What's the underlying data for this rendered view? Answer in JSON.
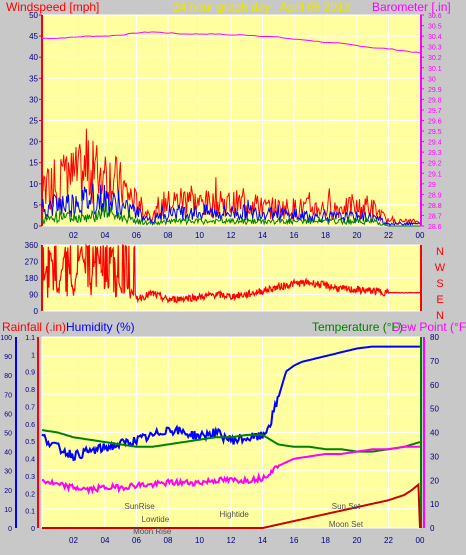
{
  "title": "24 hour graph day : April 05 2013",
  "colors": {
    "frame": "#c8c8c8",
    "plot_bg": "#ffffa0",
    "grid": "#ffffff",
    "red": "#ff0000",
    "blue": "#0000ff",
    "green": "#008000",
    "magenta": "#ff00ff",
    "title": "#e8e800",
    "axis_text_dark": "#000080",
    "dark_red": "#c80000",
    "gray": "#505050"
  },
  "x_ticks": [
    "02",
    "04",
    "06",
    "08",
    "10",
    "12",
    "14",
    "16",
    "18",
    "20",
    "22",
    "00"
  ],
  "chart_data": [
    {
      "type": "line",
      "title": "24 hour graph day : April 05 2013",
      "left_label": "Windspeed [mph]",
      "right_label": "Barometer [.in]",
      "x_range": [
        0,
        24
      ],
      "left_ticks": [
        "0",
        "5",
        "10",
        "15",
        "20",
        "25",
        "30",
        "35",
        "40",
        "45",
        "50"
      ],
      "left_range": [
        0,
        50
      ],
      "right_ticks": [
        "28.6",
        "28.7",
        "28.8",
        "28.9",
        "29",
        "29.1",
        "29.2",
        "29.3",
        "29.4",
        "29.5",
        "29.6",
        "29.7",
        "29.8",
        "29.9",
        "30",
        "30.1",
        "30.2",
        "30.3",
        "30.4",
        "30.5",
        "30.6"
      ],
      "right_range": [
        28.6,
        30.6
      ],
      "series": [
        {
          "axis": "right",
          "color": "#ff00ff",
          "x": [
            0,
            1,
            2,
            3,
            4,
            5,
            6,
            7,
            8,
            9,
            10,
            11,
            12,
            13,
            14,
            15,
            16,
            17,
            18,
            19,
            20,
            21,
            22,
            23,
            24
          ],
          "values": [
            30.38,
            30.38,
            30.39,
            30.4,
            30.4,
            30.41,
            30.43,
            30.44,
            30.43,
            30.42,
            30.42,
            30.42,
            30.41,
            30.41,
            30.4,
            30.39,
            30.37,
            30.36,
            30.34,
            30.33,
            30.31,
            30.29,
            30.28,
            30.26,
            30.24
          ]
        },
        {
          "axis": "left",
          "color": "#ff0000",
          "style": "noisy",
          "x": [
            0,
            1,
            2,
            3,
            4,
            5,
            6,
            7,
            8,
            9,
            10,
            11,
            12,
            13,
            14,
            15,
            16,
            17,
            18,
            19,
            20,
            21,
            22,
            23,
            24
          ],
          "values": [
            8,
            10,
            11,
            12,
            12,
            9,
            5,
            2,
            5,
            6,
            5,
            5,
            5,
            5,
            4,
            4,
            4,
            4,
            4,
            4,
            4,
            4,
            1,
            1,
            1
          ]
        },
        {
          "axis": "left",
          "color": "#0000ff",
          "style": "noisy",
          "x": [
            0,
            1,
            2,
            3,
            4,
            5,
            6,
            7,
            8,
            9,
            10,
            11,
            12,
            13,
            14,
            15,
            16,
            17,
            18,
            19,
            20,
            21,
            22,
            23,
            24
          ],
          "values": [
            3,
            5,
            5,
            6,
            6,
            4,
            3,
            1,
            3,
            3,
            3,
            3,
            3,
            3,
            3,
            3,
            2,
            2,
            2,
            2,
            2,
            2,
            0.5,
            0.5,
            0.5
          ]
        },
        {
          "axis": "left",
          "color": "#008000",
          "style": "noisy",
          "x": [
            0,
            1,
            2,
            3,
            4,
            5,
            6,
            7,
            8,
            9,
            10,
            11,
            12,
            13,
            14,
            15,
            16,
            17,
            18,
            19,
            20,
            21,
            22,
            23,
            24
          ],
          "values": [
            1,
            2,
            2,
            2,
            3,
            2,
            1,
            0.5,
            1,
            1,
            1,
            1,
            1,
            1,
            1,
            1,
            1,
            1,
            1,
            1,
            1,
            1,
            0,
            0,
            0
          ]
        }
      ]
    },
    {
      "type": "line",
      "title": "",
      "left_ticks": [
        "0",
        "90",
        "180",
        "270",
        "360"
      ],
      "left_range": [
        0,
        360
      ],
      "right_labels": [
        "N",
        "W",
        "S",
        "E",
        "N"
      ],
      "x_range": [
        0,
        24
      ],
      "series": [
        {
          "axis": "left",
          "color": "#ff0000",
          "style": "noisy_direction",
          "x": [
            0,
            0.5,
            1,
            1.5,
            2,
            2.5,
            3,
            3.5,
            4,
            4.5,
            5,
            5.5,
            6,
            6.5,
            7,
            8,
            9,
            10,
            11,
            12,
            13,
            14,
            15,
            16,
            17,
            18,
            19,
            20,
            21,
            22,
            23,
            24
          ],
          "values": [
            120,
            330,
            100,
            340,
            90,
            350,
            110,
            340,
            120,
            330,
            100,
            130,
            70,
            80,
            95,
            60,
            70,
            75,
            90,
            80,
            90,
            110,
            130,
            150,
            155,
            140,
            120,
            115,
            110,
            100,
            100,
            100
          ]
        }
      ]
    },
    {
      "type": "line",
      "title": "",
      "left_label": "Rainfall (.in)",
      "left2_label": "Humidity (%)",
      "right_label": "Temperature (°F)",
      "right2_label": "Dew Point (°F)",
      "x_range": [
        0,
        24
      ],
      "rain_ticks": [
        "0",
        "0.1",
        "0.2",
        "0.3",
        "0.4",
        "0.5",
        "0.6",
        "0.7",
        "0.8",
        "0.9",
        "1",
        "1.1"
      ],
      "rain_range": [
        0,
        1.1
      ],
      "humidity_ticks": [
        "0",
        "10",
        "20",
        "30",
        "40",
        "50",
        "60",
        "70",
        "80",
        "90",
        "100"
      ],
      "humidity_range": [
        0,
        100
      ],
      "temp_ticks": [
        "0",
        "10",
        "20",
        "30",
        "40",
        "50",
        "60",
        "70",
        "80"
      ],
      "temp_range": [
        0,
        80
      ],
      "series": [
        {
          "axis": "humidity",
          "color": "#0000ff",
          "x": [
            0,
            1,
            2,
            3,
            4,
            5,
            6,
            7,
            8,
            9,
            10,
            11,
            12,
            13,
            14,
            14.5,
            15,
            15.5,
            16,
            16.5,
            17,
            18,
            19,
            20,
            21,
            22,
            23,
            24
          ],
          "values": [
            48,
            42,
            38,
            40,
            42,
            44,
            46,
            48,
            52,
            50,
            48,
            50,
            46,
            47,
            48,
            55,
            68,
            82,
            85,
            87,
            88,
            90,
            92,
            94,
            95,
            95,
            95,
            95
          ]
        },
        {
          "axis": "temp",
          "color": "#008000",
          "x": [
            0,
            1,
            2,
            3,
            4,
            5,
            6,
            7,
            8,
            9,
            10,
            11,
            12,
            13,
            14,
            15,
            16,
            17,
            18,
            19,
            20,
            21,
            22,
            23,
            24
          ],
          "values": [
            41,
            40,
            38,
            37,
            36,
            35,
            34,
            34,
            35,
            36,
            37,
            38,
            38,
            39,
            39,
            35,
            34,
            34,
            33,
            33,
            32,
            32,
            33,
            34,
            36
          ]
        },
        {
          "axis": "temp",
          "color": "#ff00ff",
          "x": [
            0,
            1,
            2,
            3,
            4,
            5,
            6,
            7,
            8,
            9,
            10,
            11,
            12,
            13,
            14,
            15,
            16,
            17,
            18,
            19,
            20,
            21,
            22,
            23,
            24
          ],
          "values": [
            20,
            18,
            17,
            16,
            17,
            17,
            18,
            18,
            19,
            19,
            19,
            20,
            20,
            20,
            21,
            26,
            29,
            30,
            31,
            31,
            32,
            33,
            33,
            34,
            34
          ]
        },
        {
          "axis": "rain",
          "color": "#c80000",
          "x": [
            0,
            14,
            14.5,
            15,
            16,
            17,
            18,
            19,
            20,
            21,
            22,
            23,
            23.5,
            23.9,
            24
          ],
          "values": [
            0,
            0,
            0.01,
            0.02,
            0.04,
            0.06,
            0.08,
            0.1,
            0.12,
            0.14,
            0.16,
            0.19,
            0.22,
            0.25,
            0
          ]
        }
      ],
      "annotations": [
        {
          "text": "SunRise",
          "x": 6.2
        },
        {
          "text": "Lowtide",
          "x": 7.2
        },
        {
          "text": "Moon Rise",
          "x": 7.0
        },
        {
          "text": "Hightide",
          "x": 12.2
        },
        {
          "text": "Sun Set",
          "x": 19.3
        },
        {
          "text": "Moon Set",
          "x": 19.3
        }
      ]
    }
  ]
}
